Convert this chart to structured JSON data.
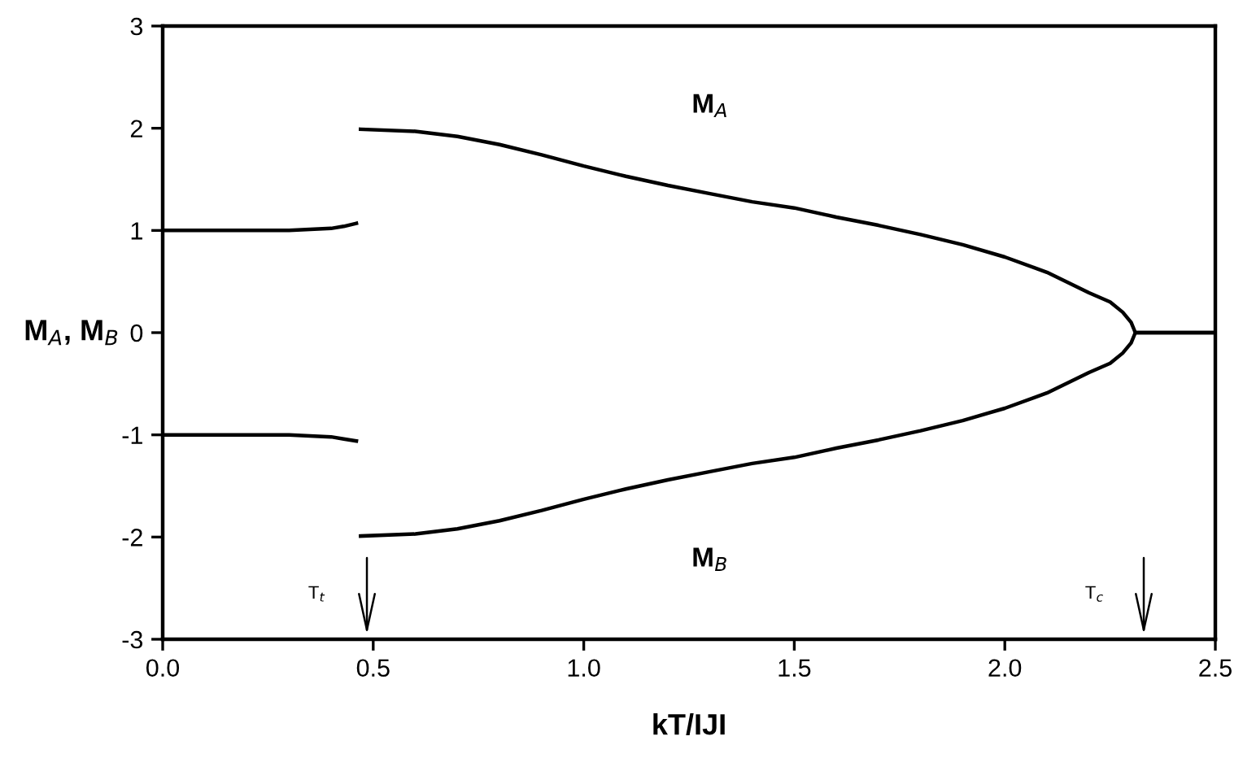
{
  "chart_data": {
    "type": "line",
    "xlabel": "kT/IJI",
    "ylabel": "M$_{A}$, M$_{B}$",
    "xlim": [
      0,
      2.5
    ],
    "ylim": [
      -3,
      3
    ],
    "xticks": [
      {
        "value": 0,
        "label": "0.0"
      },
      {
        "value": 0.5,
        "label": "0.5"
      },
      {
        "value": 1,
        "label": "1.0"
      },
      {
        "value": 1.5,
        "label": "1.5"
      },
      {
        "value": 2,
        "label": "2.0"
      },
      {
        "value": 2.5,
        "label": "2.5"
      }
    ],
    "yticks": [
      -3,
      -2,
      -1,
      0,
      1,
      2,
      3
    ],
    "grid": false,
    "legend": false,
    "marker": "none",
    "line_style": "solid",
    "series": [
      {
        "color": "#000000",
        "x": [
          0,
          0.1,
          0.2,
          0.3,
          0.35,
          0.4,
          0.43,
          0.46,
          0.465,
          0.47,
          0.6,
          0.7,
          0.8,
          0.9,
          1.0,
          1.1,
          1.2,
          1.3,
          1.4,
          1.5,
          1.6,
          1.7,
          1.8,
          1.9,
          2.0,
          2.1,
          2.2,
          2.25,
          2.28,
          2.3,
          2.31,
          2.5
        ],
        "values": [
          1,
          1,
          1,
          1,
          1.01,
          1.02,
          1.04,
          1.07,
          null,
          1.99,
          1.97,
          1.92,
          1.84,
          1.74,
          1.63,
          1.53,
          1.44,
          1.36,
          1.28,
          1.22,
          1.13,
          1.05,
          0.96,
          0.86,
          0.74,
          0.59,
          0.39,
          0.3,
          0.2,
          0.1,
          0,
          0
        ]
      },
      {
        "color": "#000000",
        "x": [
          0,
          0.1,
          0.2,
          0.3,
          0.35,
          0.4,
          0.43,
          0.46,
          0.465,
          0.47,
          0.6,
          0.7,
          0.8,
          0.9,
          1.0,
          1.1,
          1.2,
          1.3,
          1.4,
          1.5,
          1.6,
          1.7,
          1.8,
          1.9,
          2.0,
          2.1,
          2.2,
          2.25,
          2.28,
          2.3,
          2.31,
          2.5
        ],
        "values": [
          -1,
          -1,
          -1,
          -1,
          -1.01,
          -1.02,
          -1.04,
          -1.06,
          null,
          -1.99,
          -1.97,
          -1.92,
          -1.84,
          -1.74,
          -1.63,
          -1.53,
          -1.44,
          -1.36,
          -1.28,
          -1.22,
          -1.13,
          -1.05,
          -0.96,
          -0.86,
          -0.74,
          -0.59,
          -0.39,
          -0.3,
          -0.2,
          -0.1,
          0,
          0
        ]
      }
    ],
    "annotations": [
      "M$_{A}$",
      "M$_{B}$",
      "T$_{t}$",
      "T$_{c}$"
    ]
  }
}
